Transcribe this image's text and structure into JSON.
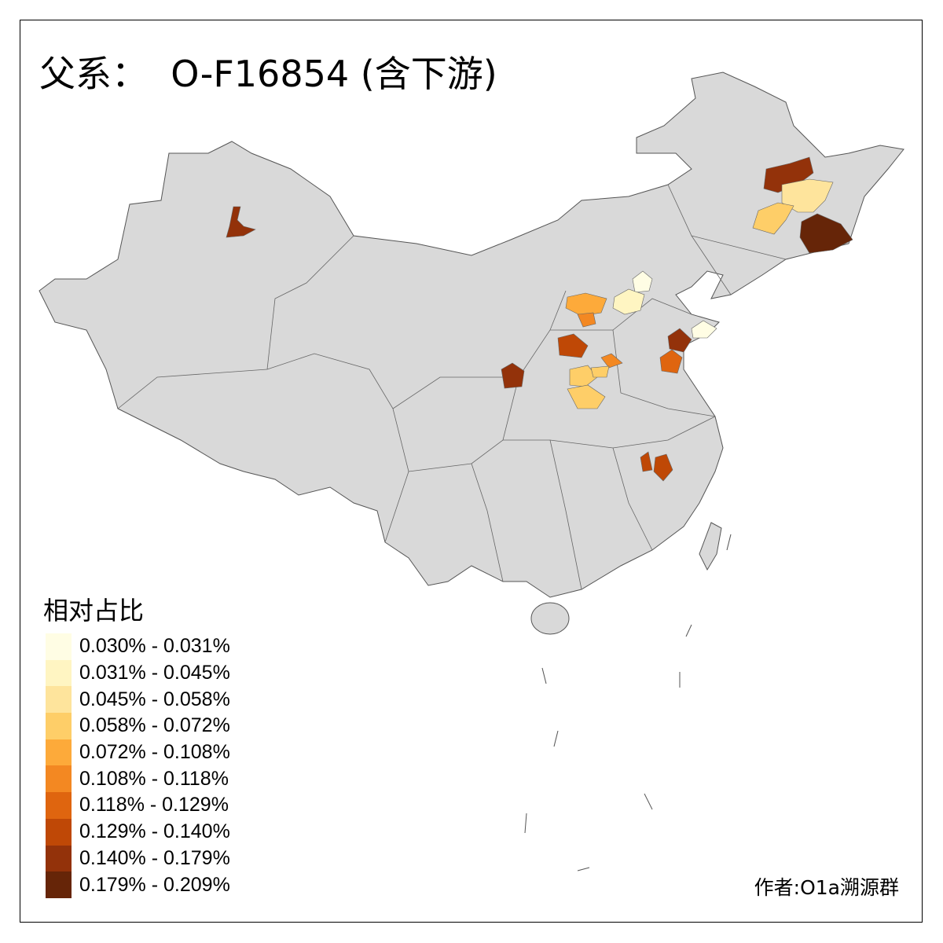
{
  "title": "父系：  O-F16854 (含下游)",
  "legend": {
    "title": "相对占比",
    "classes": [
      {
        "label": "0.030% - 0.031%",
        "color": "#FFFDE4"
      },
      {
        "label": "0.031% - 0.045%",
        "color": "#FFF5C2"
      },
      {
        "label": "0.045% - 0.058%",
        "color": "#FEE49C"
      },
      {
        "label": "0.058% - 0.072%",
        "color": "#FECE68"
      },
      {
        "label": "0.072% - 0.108%",
        "color": "#FDAA3A"
      },
      {
        "label": "0.108% - 0.118%",
        "color": "#F38822"
      },
      {
        "label": "0.118% - 0.129%",
        "color": "#DF650F"
      },
      {
        "label": "0.129% - 0.140%",
        "color": "#BF4806"
      },
      {
        "label": "0.140% - 0.179%",
        "color": "#93320A"
      },
      {
        "label": "0.179% - 0.209%",
        "color": "#662508"
      }
    ]
  },
  "base_color": "#D9D9D9",
  "author": "作者:O1a溯源群"
}
